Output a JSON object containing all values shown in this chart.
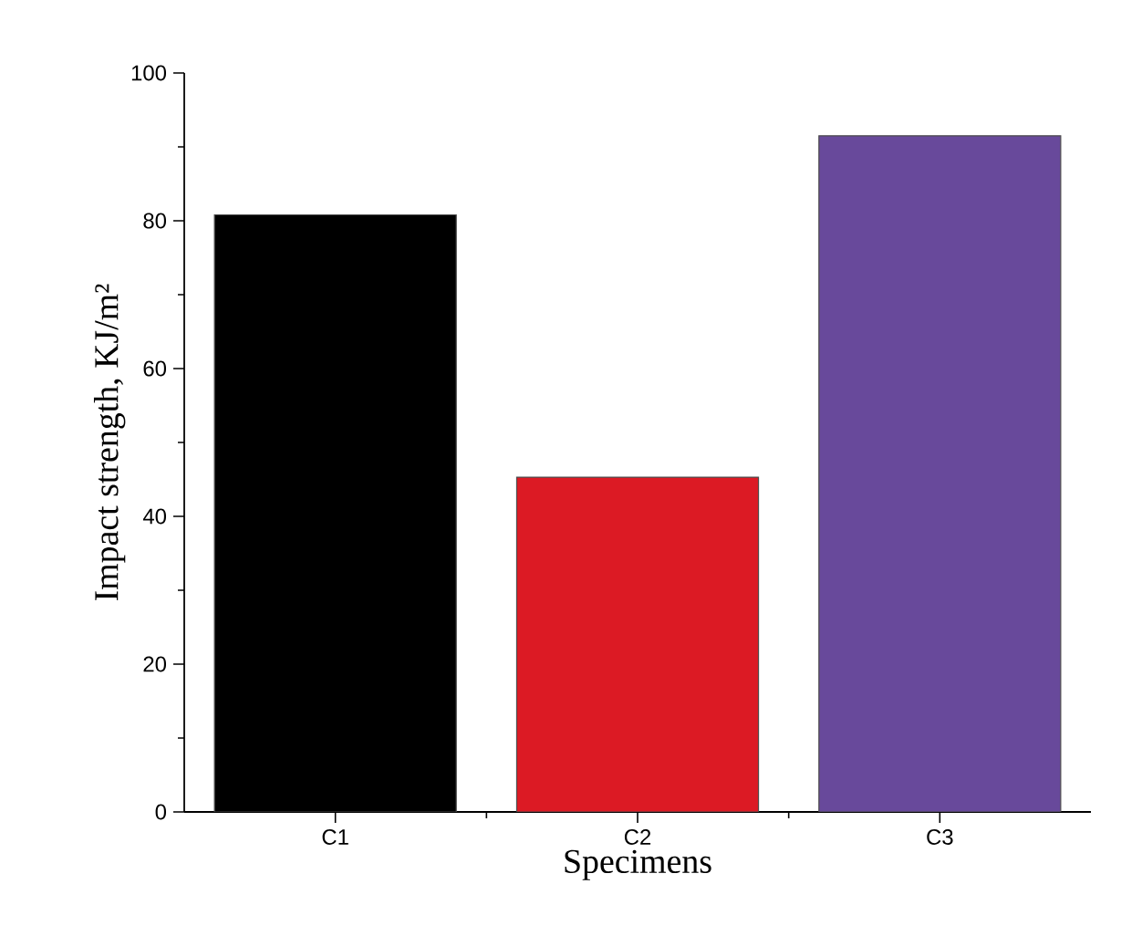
{
  "chart_data": {
    "type": "bar",
    "xlabel": "Specimens",
    "ylabel": "Impact strength, KJ/m²",
    "categories": [
      "C1",
      "C2",
      "C3"
    ],
    "values": [
      80.8,
      45.3,
      91.5
    ],
    "colors": [
      "#000000",
      "#dc1a24",
      "#68499b"
    ],
    "ylim": [
      0,
      100
    ],
    "yticks": [
      0,
      20,
      40,
      60,
      80,
      100
    ],
    "grid": false
  }
}
